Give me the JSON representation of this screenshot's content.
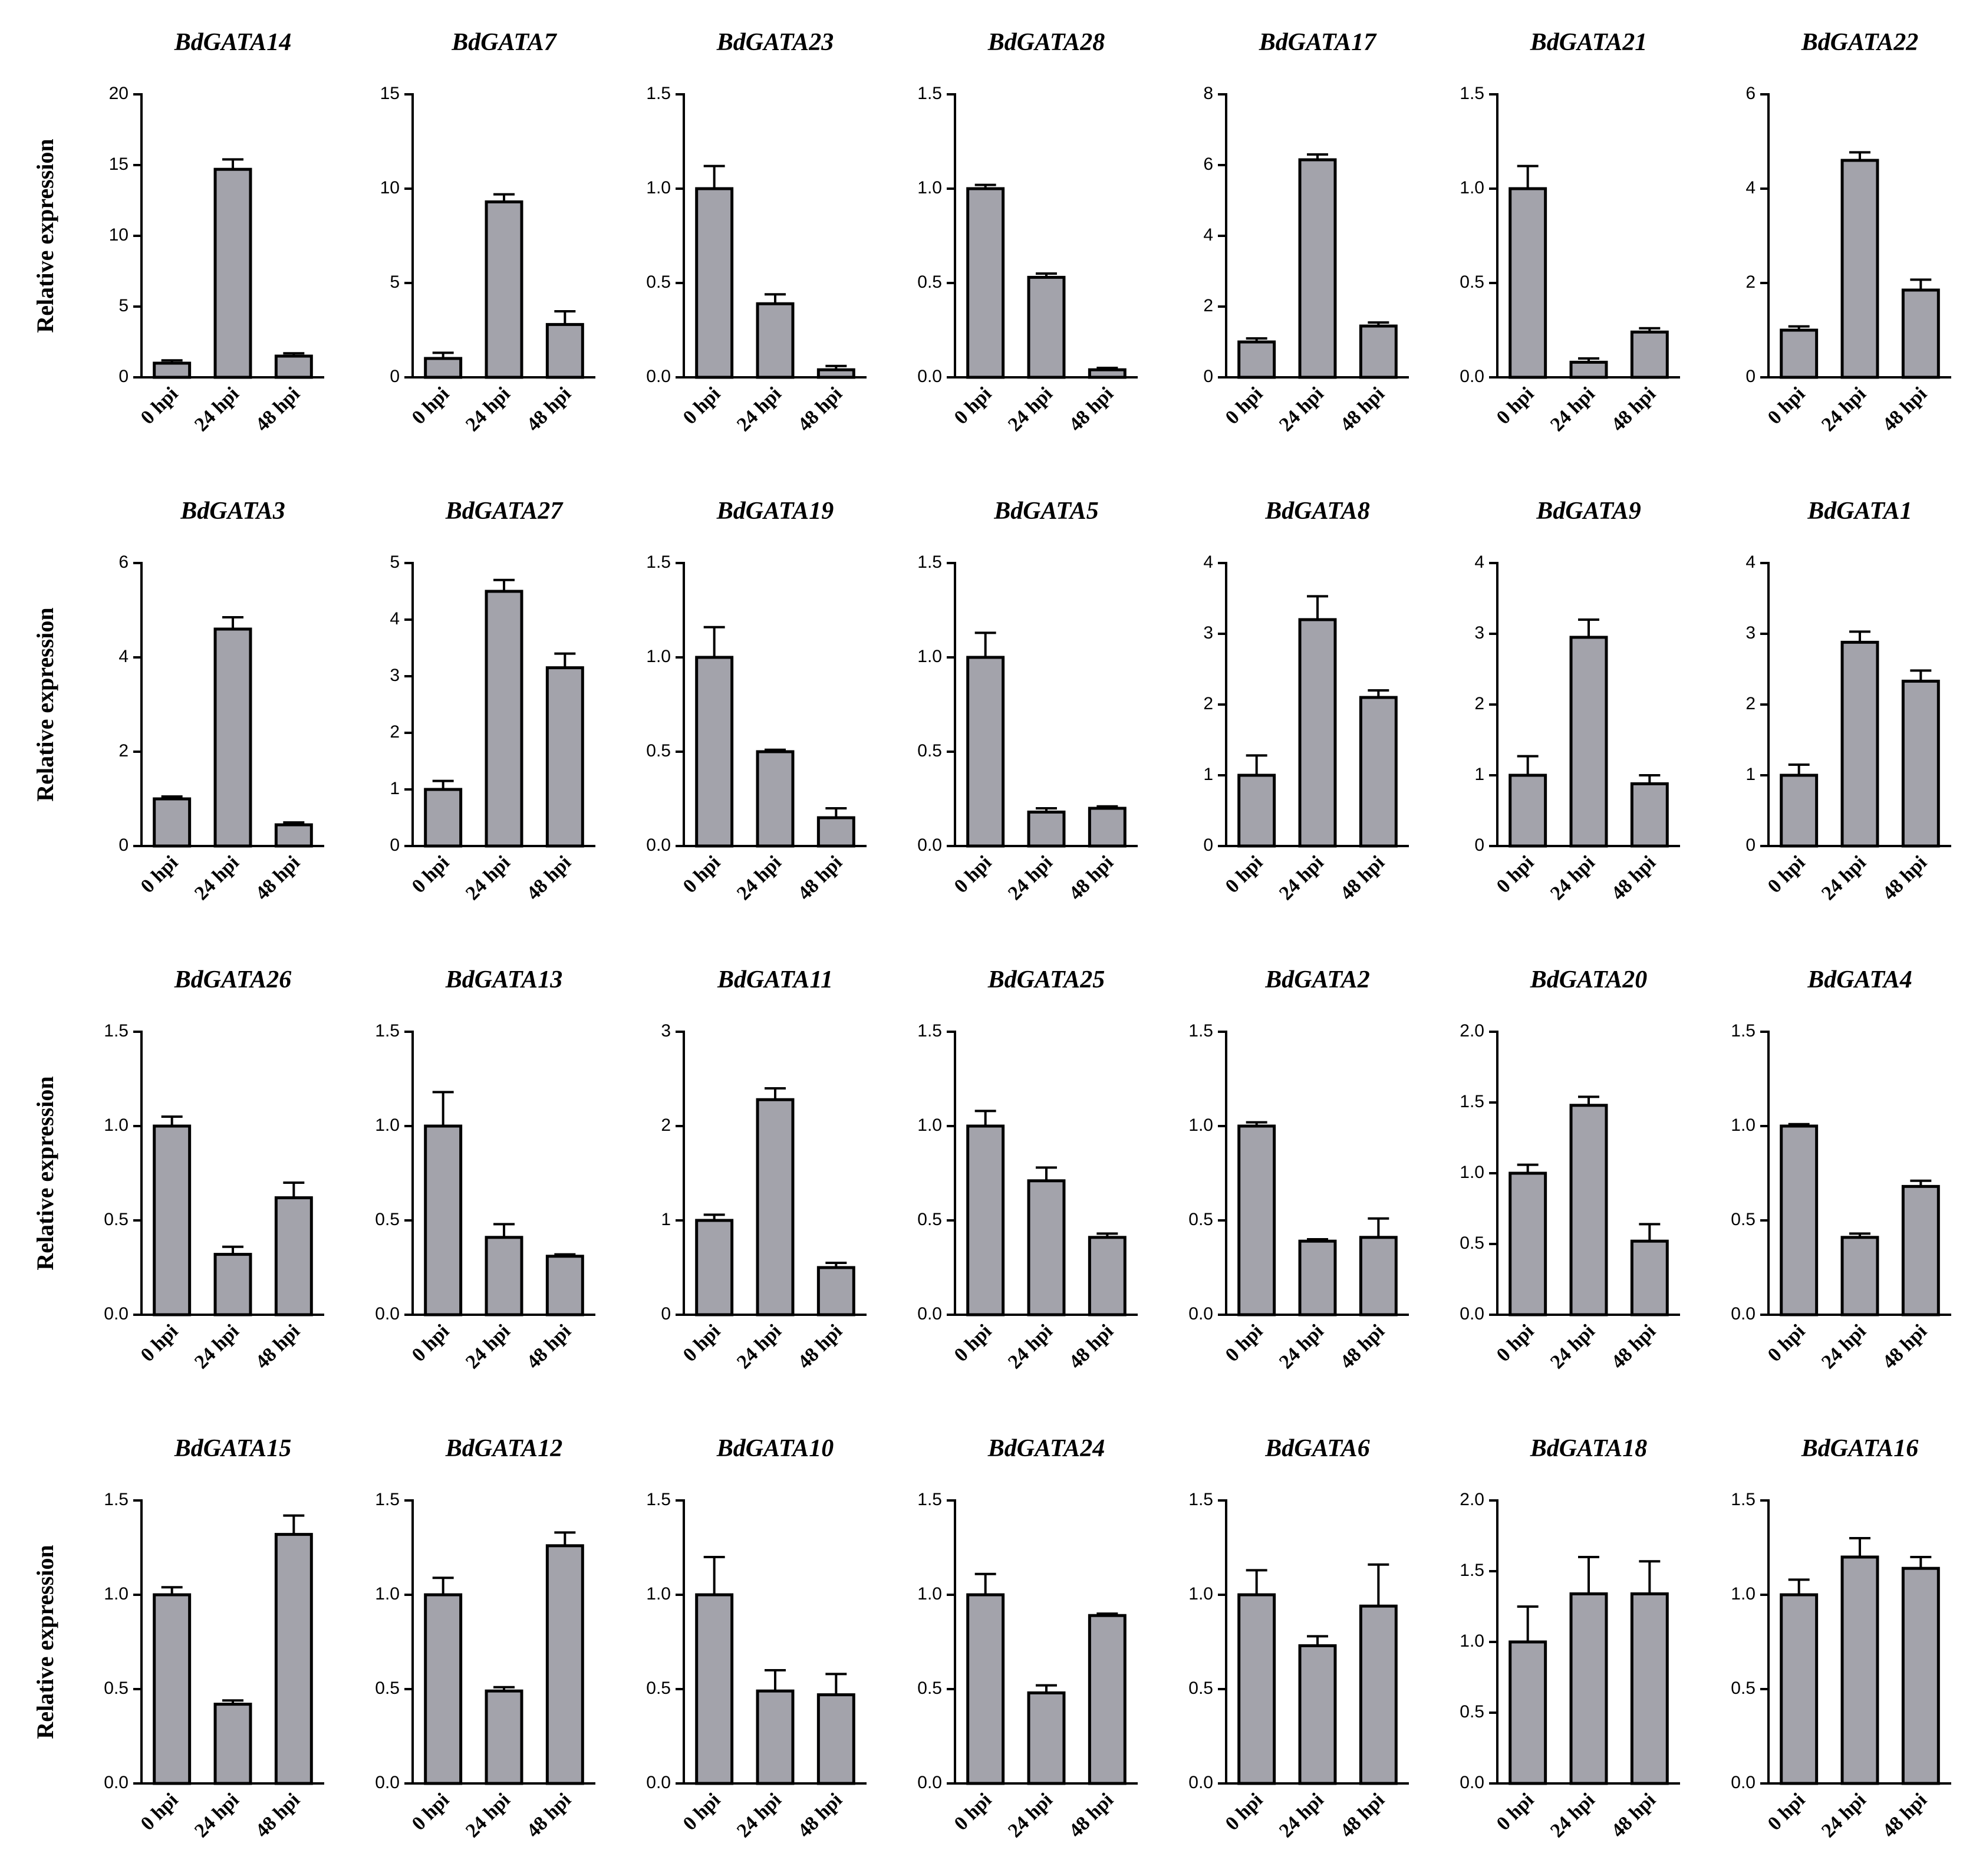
{
  "chart_data": [
    {
      "type": "bar",
      "title": "BdGATA14",
      "ylabel": "Relative expression",
      "categories": [
        "0 hpi",
        "24 hpi",
        "48 hpi"
      ],
      "values": [
        1.0,
        14.7,
        1.5
      ],
      "errors": [
        0.2,
        0.7,
        0.2
      ],
      "color": "#a3a3ab",
      "ylim": [
        0,
        20
      ],
      "yticks": [
        0,
        5,
        10,
        15,
        20
      ]
    },
    {
      "type": "bar",
      "title": "BdGATA7",
      "categories": [
        "0 hpi",
        "24 hpi",
        "48 hpi"
      ],
      "values": [
        1.0,
        9.3,
        2.8
      ],
      "errors": [
        0.3,
        0.4,
        0.7
      ],
      "color": "#a3a3ab",
      "ylim": [
        0,
        15
      ],
      "yticks": [
        0,
        5,
        10,
        15
      ]
    },
    {
      "type": "bar",
      "title": "BdGATA23",
      "categories": [
        "0 hpi",
        "24 hpi",
        "48 hpi"
      ],
      "values": [
        1.0,
        0.39,
        0.04
      ],
      "errors": [
        0.12,
        0.05,
        0.02
      ],
      "color": "#a3a3ab",
      "ylim": [
        0,
        1.5
      ],
      "yticks": [
        {
          "value": 0,
          "label": "0.0"
        },
        0.5,
        {
          "value": 1,
          "label": "1.0"
        },
        1.5
      ]
    },
    {
      "type": "bar",
      "title": "BdGATA28",
      "categories": [
        "0 hpi",
        "24 hpi",
        "48 hpi"
      ],
      "values": [
        1.0,
        0.53,
        0.04
      ],
      "errors": [
        0.02,
        0.02,
        0.01
      ],
      "color": "#a3a3ab",
      "ylim": [
        0,
        1.5
      ],
      "yticks": [
        {
          "value": 0,
          "label": "0.0"
        },
        0.5,
        {
          "value": 1,
          "label": "1.0"
        },
        1.5
      ]
    },
    {
      "type": "bar",
      "title": "BdGATA17",
      "categories": [
        "0 hpi",
        "24 hpi",
        "48 hpi"
      ],
      "values": [
        1.0,
        6.15,
        1.45
      ],
      "errors": [
        0.1,
        0.15,
        0.1
      ],
      "color": "#a3a3ab",
      "ylim": [
        0,
        8
      ],
      "yticks": [
        0,
        2,
        4,
        6,
        8
      ]
    },
    {
      "type": "bar",
      "title": "BdGATA21",
      "categories": [
        "0 hpi",
        "24 hpi",
        "48 hpi"
      ],
      "values": [
        1.0,
        0.08,
        0.24
      ],
      "errors": [
        0.12,
        0.02,
        0.02
      ],
      "color": "#a3a3ab",
      "ylim": [
        0,
        1.5
      ],
      "yticks": [
        {
          "value": 0,
          "label": "0.0"
        },
        0.5,
        {
          "value": 1,
          "label": "1.0"
        },
        1.5
      ]
    },
    {
      "type": "bar",
      "title": "BdGATA22",
      "categories": [
        "0 hpi",
        "24 hpi",
        "48 hpi"
      ],
      "values": [
        1.0,
        4.6,
        1.85
      ],
      "errors": [
        0.08,
        0.17,
        0.22
      ],
      "color": "#a3a3ab",
      "ylim": [
        0,
        6
      ],
      "yticks": [
        0,
        2,
        4,
        6
      ]
    },
    {
      "type": "bar",
      "title": "BdGATA3",
      "ylabel": "Relative expression",
      "categories": [
        "0 hpi",
        "24 hpi",
        "48 hpi"
      ],
      "values": [
        1.0,
        4.6,
        0.45
      ],
      "errors": [
        0.05,
        0.25,
        0.05
      ],
      "color": "#a3a3ab",
      "ylim": [
        0,
        6
      ],
      "yticks": [
        0,
        2,
        4,
        6
      ]
    },
    {
      "type": "bar",
      "title": "BdGATA27",
      "categories": [
        "0 hpi",
        "24 hpi",
        "48 hpi"
      ],
      "values": [
        1.0,
        4.5,
        3.15
      ],
      "errors": [
        0.15,
        0.2,
        0.25
      ],
      "color": "#a3a3ab",
      "ylim": [
        0,
        5
      ],
      "yticks": [
        0,
        1,
        2,
        3,
        4,
        5
      ]
    },
    {
      "type": "bar",
      "title": "BdGATA19",
      "categories": [
        "0 hpi",
        "24 hpi",
        "48 hpi"
      ],
      "values": [
        1.0,
        0.5,
        0.15
      ],
      "errors": [
        0.16,
        0.01,
        0.05
      ],
      "color": "#a3a3ab",
      "ylim": [
        0,
        1.5
      ],
      "yticks": [
        {
          "value": 0,
          "label": "0.0"
        },
        0.5,
        {
          "value": 1,
          "label": "1.0"
        },
        1.5
      ]
    },
    {
      "type": "bar",
      "title": "BdGATA5",
      "categories": [
        "0 hpi",
        "24 hpi",
        "48 hpi"
      ],
      "values": [
        1.0,
        0.18,
        0.2
      ],
      "errors": [
        0.13,
        0.02,
        0.01
      ],
      "color": "#a3a3ab",
      "ylim": [
        0,
        1.5
      ],
      "yticks": [
        {
          "value": 0,
          "label": "0.0"
        },
        0.5,
        {
          "value": 1,
          "label": "1.0"
        },
        1.5
      ]
    },
    {
      "type": "bar",
      "title": "BdGATA8",
      "categories": [
        "0 hpi",
        "24 hpi",
        "48 hpi"
      ],
      "values": [
        1.0,
        3.2,
        2.1
      ],
      "errors": [
        0.28,
        0.33,
        0.1
      ],
      "color": "#a3a3ab",
      "ylim": [
        0,
        4
      ],
      "yticks": [
        0,
        1,
        2,
        3,
        4
      ]
    },
    {
      "type": "bar",
      "title": "BdGATA9",
      "categories": [
        "0 hpi",
        "24 hpi",
        "48 hpi"
      ],
      "values": [
        1.0,
        2.95,
        0.88
      ],
      "errors": [
        0.27,
        0.25,
        0.12
      ],
      "color": "#a3a3ab",
      "ylim": [
        0,
        4
      ],
      "yticks": [
        0,
        1,
        2,
        3,
        4
      ]
    },
    {
      "type": "bar",
      "title": "BdGATA1",
      "categories": [
        "0 hpi",
        "24 hpi",
        "48 hpi"
      ],
      "values": [
        1.0,
        2.88,
        2.33
      ],
      "errors": [
        0.15,
        0.15,
        0.15
      ],
      "color": "#a3a3ab",
      "ylim": [
        0,
        4
      ],
      "yticks": [
        0,
        1,
        2,
        3,
        4
      ]
    },
    {
      "type": "bar",
      "title": "BdGATA26",
      "ylabel": "Relative expression",
      "categories": [
        "0 hpi",
        "24 hpi",
        "48 hpi"
      ],
      "values": [
        1.0,
        0.32,
        0.62
      ],
      "errors": [
        0.05,
        0.04,
        0.08
      ],
      "color": "#a3a3ab",
      "ylim": [
        0,
        1.5
      ],
      "yticks": [
        {
          "value": 0,
          "label": "0.0"
        },
        0.5,
        {
          "value": 1,
          "label": "1.0"
        },
        1.5
      ]
    },
    {
      "type": "bar",
      "title": "BdGATA13",
      "categories": [
        "0 hpi",
        "24 hpi",
        "48 hpi"
      ],
      "values": [
        1.0,
        0.41,
        0.31
      ],
      "errors": [
        0.18,
        0.07,
        0.01
      ],
      "color": "#a3a3ab",
      "ylim": [
        0,
        1.5
      ],
      "yticks": [
        {
          "value": 0,
          "label": "0.0"
        },
        0.5,
        {
          "value": 1,
          "label": "1.0"
        },
        1.5
      ]
    },
    {
      "type": "bar",
      "title": "BdGATA11",
      "categories": [
        "0 hpi",
        "24 hpi",
        "48 hpi"
      ],
      "values": [
        1.0,
        2.28,
        0.5
      ],
      "errors": [
        0.06,
        0.12,
        0.05
      ],
      "color": "#a3a3ab",
      "ylim": [
        0,
        3
      ],
      "yticks": [
        0,
        1,
        2,
        3
      ]
    },
    {
      "type": "bar",
      "title": "BdGATA25",
      "categories": [
        "0 hpi",
        "24 hpi",
        "48 hpi"
      ],
      "values": [
        1.0,
        0.71,
        0.41
      ],
      "errors": [
        0.08,
        0.07,
        0.02
      ],
      "color": "#a3a3ab",
      "ylim": [
        0,
        1.5
      ],
      "yticks": [
        {
          "value": 0,
          "label": "0.0"
        },
        0.5,
        {
          "value": 1,
          "label": "1.0"
        },
        1.5
      ]
    },
    {
      "type": "bar",
      "title": "BdGATA2",
      "categories": [
        "0 hpi",
        "24 hpi",
        "48 hpi"
      ],
      "values": [
        1.0,
        0.39,
        0.41
      ],
      "errors": [
        0.02,
        0.01,
        0.1
      ],
      "color": "#a3a3ab",
      "ylim": [
        0,
        1.5
      ],
      "yticks": [
        {
          "value": 0,
          "label": "0.0"
        },
        0.5,
        {
          "value": 1,
          "label": "1.0"
        },
        1.5
      ]
    },
    {
      "type": "bar",
      "title": "BdGATA20",
      "categories": [
        "0 hpi",
        "24 hpi",
        "48 hpi"
      ],
      "values": [
        1.0,
        1.48,
        0.52
      ],
      "errors": [
        0.06,
        0.06,
        0.12
      ],
      "color": "#a3a3ab",
      "ylim": [
        0,
        2
      ],
      "yticks": [
        {
          "value": 0,
          "label": "0.0"
        },
        0.5,
        {
          "value": 1,
          "label": "1.0"
        },
        1.5,
        {
          "value": 2,
          "label": "2.0"
        }
      ]
    },
    {
      "type": "bar",
      "title": "BdGATA4",
      "categories": [
        "0 hpi",
        "24 hpi",
        "48 hpi"
      ],
      "values": [
        1.0,
        0.41,
        0.68
      ],
      "errors": [
        0.01,
        0.02,
        0.03
      ],
      "color": "#a3a3ab",
      "ylim": [
        0,
        1.5
      ],
      "yticks": [
        {
          "value": 0,
          "label": "0.0"
        },
        0.5,
        {
          "value": 1,
          "label": "1.0"
        },
        1.5
      ]
    },
    {
      "type": "bar",
      "title": "BdGATA15",
      "ylabel": "Relative expression",
      "categories": [
        "0 hpi",
        "24 hpi",
        "48 hpi"
      ],
      "values": [
        1.0,
        0.42,
        1.32
      ],
      "errors": [
        0.04,
        0.02,
        0.1
      ],
      "color": "#a3a3ab",
      "ylim": [
        0,
        1.5
      ],
      "yticks": [
        {
          "value": 0,
          "label": "0.0"
        },
        0.5,
        {
          "value": 1,
          "label": "1.0"
        },
        1.5
      ]
    },
    {
      "type": "bar",
      "title": "BdGATA12",
      "categories": [
        "0 hpi",
        "24 hpi",
        "48 hpi"
      ],
      "values": [
        1.0,
        0.49,
        1.26
      ],
      "errors": [
        0.09,
        0.02,
        0.07
      ],
      "color": "#a3a3ab",
      "ylim": [
        0,
        1.5
      ],
      "yticks": [
        {
          "value": 0,
          "label": "0.0"
        },
        0.5,
        {
          "value": 1,
          "label": "1.0"
        },
        1.5
      ]
    },
    {
      "type": "bar",
      "title": "BdGATA10",
      "categories": [
        "0 hpi",
        "24 hpi",
        "48 hpi"
      ],
      "values": [
        1.0,
        0.49,
        0.47
      ],
      "errors": [
        0.2,
        0.11,
        0.11
      ],
      "color": "#a3a3ab",
      "ylim": [
        0,
        1.5
      ],
      "yticks": [
        {
          "value": 0,
          "label": "0.0"
        },
        0.5,
        {
          "value": 1,
          "label": "1.0"
        },
        1.5
      ]
    },
    {
      "type": "bar",
      "title": "BdGATA24",
      "categories": [
        "0 hpi",
        "24 hpi",
        "48 hpi"
      ],
      "values": [
        1.0,
        0.48,
        0.89
      ],
      "errors": [
        0.11,
        0.04,
        0.01
      ],
      "color": "#a3a3ab",
      "ylim": [
        0,
        1.5
      ],
      "yticks": [
        {
          "value": 0,
          "label": "0.0"
        },
        0.5,
        {
          "value": 1,
          "label": "1.0"
        },
        1.5
      ]
    },
    {
      "type": "bar",
      "title": "BdGATA6",
      "categories": [
        "0 hpi",
        "24 hpi",
        "48 hpi"
      ],
      "values": [
        1.0,
        0.73,
        0.94
      ],
      "errors": [
        0.13,
        0.05,
        0.22
      ],
      "color": "#a3a3ab",
      "ylim": [
        0,
        1.5
      ],
      "yticks": [
        {
          "value": 0,
          "label": "0.0"
        },
        0.5,
        {
          "value": 1,
          "label": "1.0"
        },
        1.5
      ]
    },
    {
      "type": "bar",
      "title": "BdGATA18",
      "categories": [
        "0 hpi",
        "24 hpi",
        "48 hpi"
      ],
      "values": [
        1.0,
        1.34,
        1.34
      ],
      "errors": [
        0.25,
        0.26,
        0.23
      ],
      "color": "#a3a3ab",
      "ylim": [
        0,
        2
      ],
      "yticks": [
        {
          "value": 0,
          "label": "0.0"
        },
        0.5,
        {
          "value": 1,
          "label": "1.0"
        },
        1.5,
        {
          "value": 2,
          "label": "2.0"
        }
      ]
    },
    {
      "type": "bar",
      "title": "BdGATA16",
      "categories": [
        "0 hpi",
        "24 hpi",
        "48 hpi"
      ],
      "values": [
        1.0,
        1.2,
        1.14
      ],
      "errors": [
        0.08,
        0.1,
        0.06
      ],
      "color": "#a3a3ab",
      "ylim": [
        0,
        1.5
      ],
      "yticks": [
        {
          "value": 0,
          "label": "0.0"
        },
        0.5,
        {
          "value": 1,
          "label": "1.0"
        },
        1.5
      ]
    }
  ]
}
